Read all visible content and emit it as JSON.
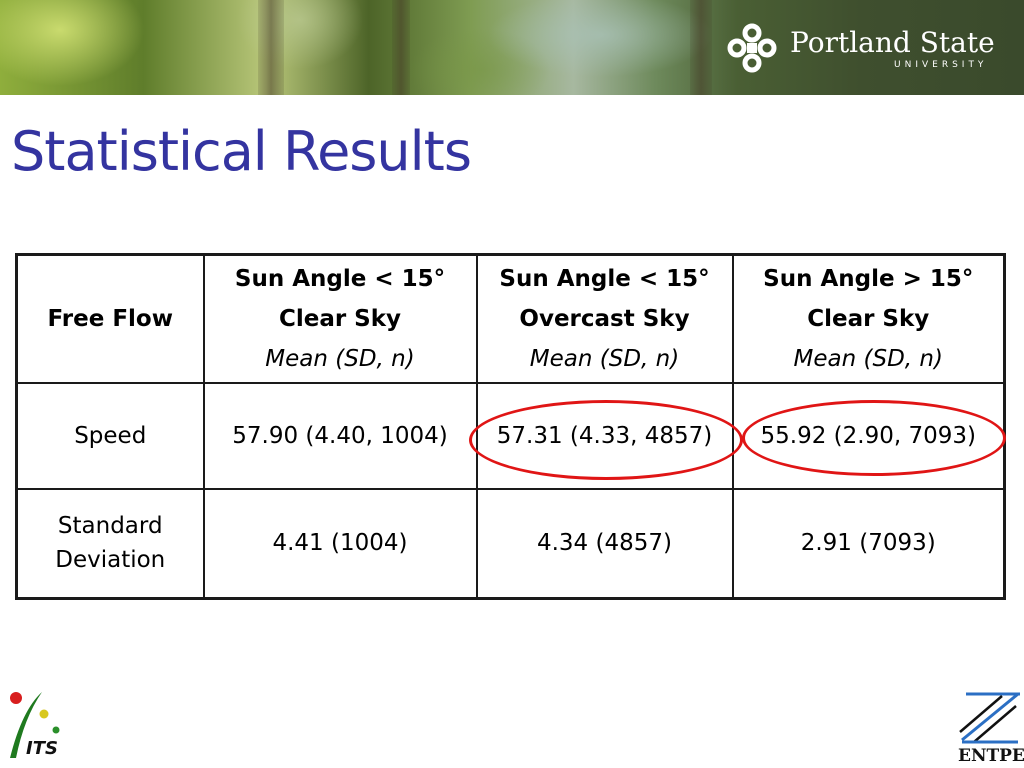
{
  "header": {
    "logo_name": "Portland State",
    "logo_subtitle": "UNIVERSITY",
    "logo_icon": "psu-knot-icon"
  },
  "title": "Statistical Results",
  "table": {
    "corner_label": "Free Flow",
    "columns": [
      {
        "line1": "Sun Angle < 15°",
        "line2": "Clear Sky",
        "line3": "Mean (SD, n)"
      },
      {
        "line1": "Sun Angle < 15°",
        "line2": "Overcast Sky",
        "line3": "Mean (SD, n)"
      },
      {
        "line1": "Sun Angle > 15°",
        "line2": "Clear Sky",
        "line3": "Mean (SD, n)"
      }
    ],
    "rows": [
      {
        "label_line1": "Speed",
        "label_line2": "",
        "values": [
          "57.90 (4.40, 1004)",
          "57.31 (4.33, 4857)",
          "55.92 (2.90, 7093)"
        ]
      },
      {
        "label_line1": "Standard",
        "label_line2": "Deviation",
        "values": [
          "4.41 (1004)",
          "4.34 (4857)",
          "2.91 (7093)"
        ]
      }
    ],
    "highlighted_cells": [
      "speed-overcast",
      "speed-high-sun"
    ],
    "highlight_color": "#e01515"
  },
  "footer": {
    "left_logo_text": "ITS",
    "right_logo_text": "ENTPE"
  },
  "colors": {
    "title": "#3434a0",
    "highlight": "#e01515"
  }
}
